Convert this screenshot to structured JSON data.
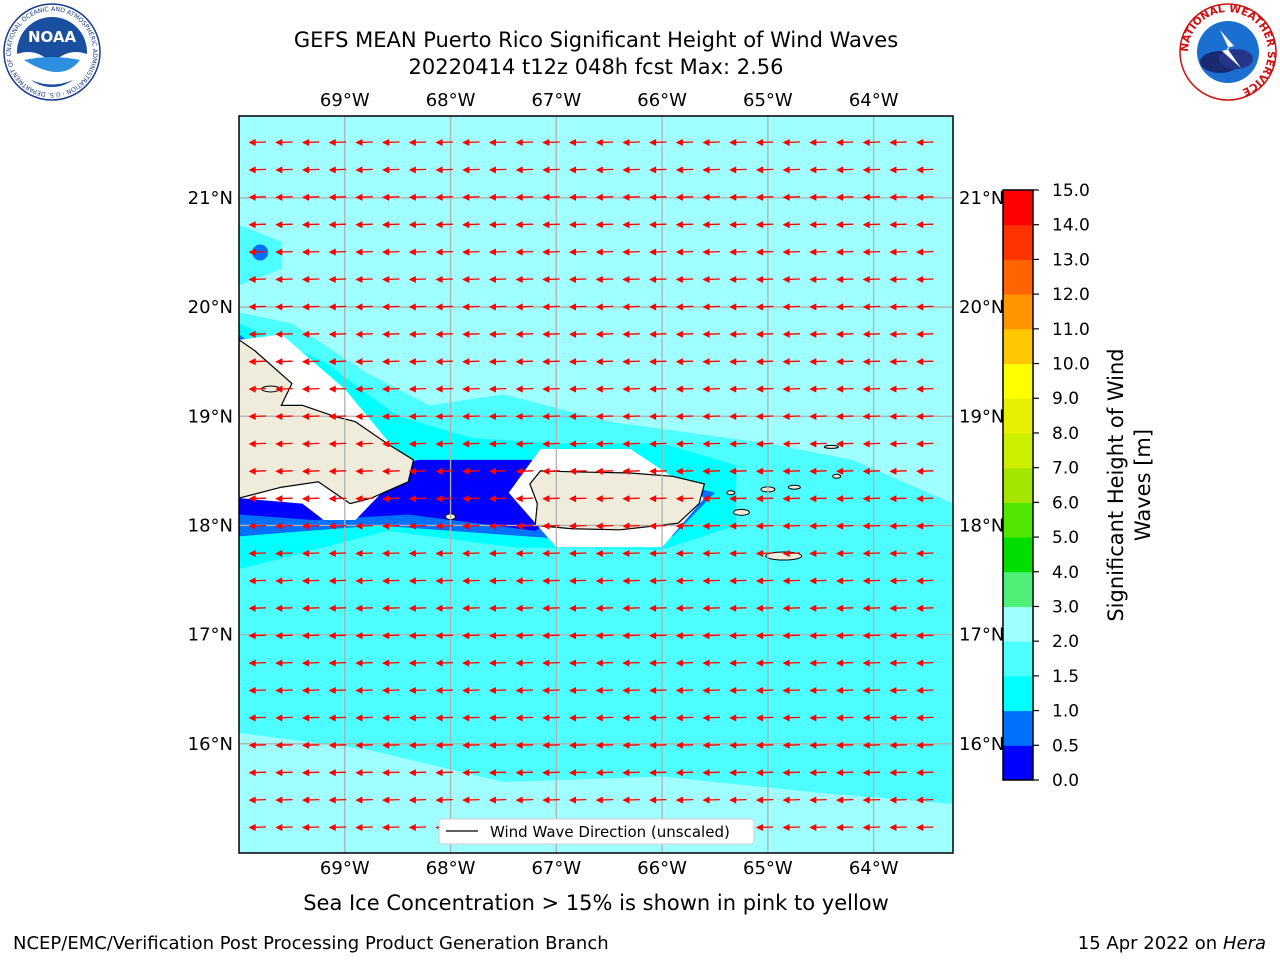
{
  "title": {
    "line1": "GEFS MEAN Puerto Rico Significant Height of Wind Waves",
    "line2": "20220414 t12z 048h fcst   Max: 2.56"
  },
  "map": {
    "lon_range": [
      -70.0,
      -63.25
    ],
    "lat_range": [
      15.0,
      21.75
    ],
    "lon_ticks": [
      {
        "value": -69,
        "label": "69°W"
      },
      {
        "value": -68,
        "label": "68°W"
      },
      {
        "value": -67,
        "label": "67°W"
      },
      {
        "value": -66,
        "label": "66°W"
      },
      {
        "value": -65,
        "label": "65°W"
      },
      {
        "value": -64,
        "label": "64°W"
      }
    ],
    "lat_ticks": [
      {
        "value": 21,
        "label": "21°N"
      },
      {
        "value": 20,
        "label": "20°N"
      },
      {
        "value": 19,
        "label": "19°N"
      },
      {
        "value": 18,
        "label": "18°N"
      },
      {
        "value": 17,
        "label": "17°N"
      },
      {
        "value": 16,
        "label": "16°N"
      }
    ],
    "grid": true,
    "wind_wave_direction": "westward",
    "legend": {
      "label": "Wind Wave Direction (unscaled)",
      "placement": "bottom-center"
    },
    "colors": {
      "ocean_mid": "#4dffff",
      "ocean_light": "#a0ffff",
      "ocean_shallow": "#00ffff",
      "ocean_low": "#0070ff",
      "ocean_min": "#0000ff",
      "land": "#f0ecdc",
      "arrows": "#ff0000"
    }
  },
  "colorbar": {
    "label_line1": "Significant Height of Wind",
    "label_line2": "Waves [m]",
    "ticks": [
      "0.0",
      "0.5",
      "1.0",
      "1.5",
      "2.0",
      "3.0",
      "4.0",
      "5.0",
      "6.0",
      "7.0",
      "8.0",
      "9.0",
      "10.0",
      "11.0",
      "12.0",
      "13.0",
      "14.0",
      "15.0"
    ],
    "colors": [
      "#0000ff",
      "#0070ff",
      "#00ffff",
      "#4dffff",
      "#a0ffff",
      "#50f078",
      "#00dd00",
      "#50e600",
      "#a5e600",
      "#cdf000",
      "#e6f000",
      "#ffff00",
      "#ffc800",
      "#ff9600",
      "#ff6400",
      "#ff3200",
      "#ff0000"
    ]
  },
  "footer": {
    "sea_ice": "Sea Ice Concentration > 15% is shown in pink to yellow",
    "credit": "NCEP/EMC/Verification Post Processing Product Generation Branch",
    "date": "15 Apr 2022 on ",
    "host": "Hera"
  },
  "logos": {
    "noaa_text": "NOAA",
    "noaa_ring": "NATIONAL OCEANIC AND ATMOSPHERIC ADMINISTRATION · U.S. DEPARTMENT OF COMMERCE",
    "nws_ring": "NATIONAL WEATHER SERVICE"
  }
}
